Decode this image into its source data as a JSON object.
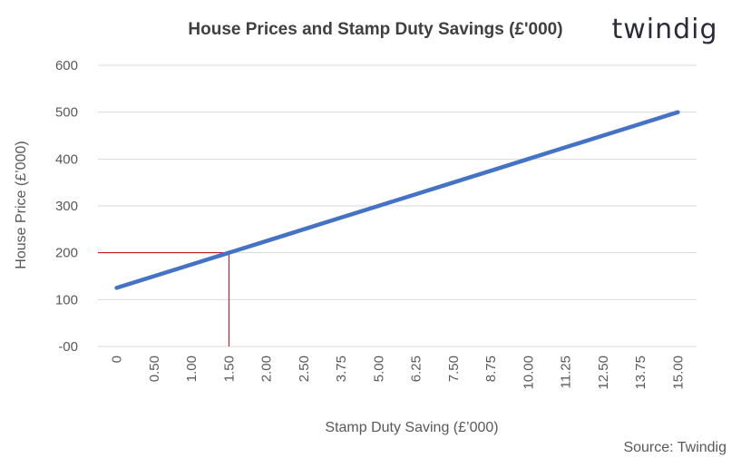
{
  "chart_data": {
    "type": "line",
    "title": "House Prices and Stamp Duty Savings (£'000)",
    "xlabel": "Stamp Duty Saving (£’000)",
    "ylabel": "House Price (£’000)",
    "categories": [
      "0",
      "0.50",
      "1.00",
      "1.50",
      "2.00",
      "2.50",
      "3.75",
      "5.00",
      "6.25",
      "7.50",
      "8.75",
      "10.00",
      "11.25",
      "12.50",
      "13.75",
      "15.00"
    ],
    "series": [
      {
        "values": [
          125,
          150,
          175,
          200,
          225,
          250,
          275,
          300,
          325,
          350,
          375,
          400,
          425,
          450,
          475,
          500
        ],
        "color": "#4472c4"
      }
    ],
    "yticks": [
      "-00",
      "100",
      "200",
      "300",
      "400",
      "500",
      "600"
    ],
    "ylim": [
      0,
      600
    ],
    "grid": true,
    "reference_point": {
      "x": "1.50",
      "y": 200,
      "color": "#c00000"
    }
  },
  "logo_text": "twindig",
  "source": "Source: Twindig"
}
